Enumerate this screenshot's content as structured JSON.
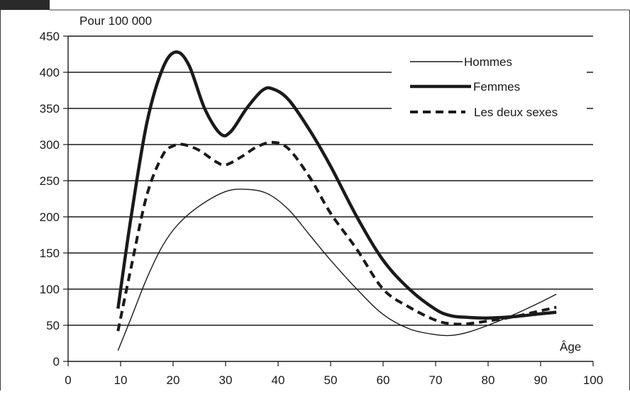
{
  "chart_data": {
    "type": "line",
    "title": "",
    "y_unit_label": "Pour 100 000",
    "xlabel": "Âge",
    "ylabel": "",
    "xlim": [
      0,
      100
    ],
    "ylim": [
      0,
      450
    ],
    "x_ticks": [
      0,
      10,
      20,
      30,
      40,
      50,
      60,
      70,
      80,
      90,
      100
    ],
    "y_ticks": [
      0,
      50,
      100,
      150,
      200,
      250,
      300,
      350,
      400,
      450
    ],
    "grid": "horizontal",
    "legend_position": "top-right",
    "series": [
      {
        "name": "Hommes",
        "style": "thin",
        "color": "#1a1a1a",
        "x": [
          9.5,
          12,
          15,
          18,
          21,
          25,
          30,
          34,
          38,
          42,
          46,
          50,
          55,
          60,
          65,
          70,
          73,
          76,
          80,
          85,
          90,
          93
        ],
        "values": [
          15,
          60,
          115,
          160,
          190,
          215,
          235,
          238,
          232,
          210,
          175,
          140,
          100,
          65,
          45,
          37,
          36,
          40,
          50,
          65,
          82,
          93
        ]
      },
      {
        "name": "Femmes",
        "style": "thick",
        "color": "#1a1a1a",
        "x": [
          9.5,
          12,
          15,
          18,
          20.5,
          23,
          26,
          29,
          31,
          34,
          37,
          39,
          42,
          46,
          50,
          55,
          60,
          65,
          70,
          73,
          76,
          80,
          85,
          90,
          93
        ],
        "values": [
          73,
          200,
          330,
          405,
          428,
          410,
          350,
          315,
          318,
          350,
          375,
          377,
          362,
          320,
          270,
          200,
          140,
          100,
          72,
          63,
          61,
          60,
          62,
          66,
          68
        ]
      },
      {
        "name": "Les deux sexes",
        "style": "dashed",
        "color": "#1a1a1a",
        "x": [
          9.5,
          12,
          15,
          18,
          20,
          22,
          25,
          28,
          30,
          33,
          36,
          39,
          42,
          46,
          50,
          55,
          60,
          65,
          70,
          73,
          76,
          80,
          85,
          90,
          93
        ],
        "values": [
          42,
          130,
          230,
          285,
          298,
          300,
          292,
          277,
          272,
          283,
          297,
          303,
          294,
          255,
          205,
          155,
          100,
          75,
          57,
          52,
          52,
          56,
          62,
          70,
          75
        ]
      }
    ]
  }
}
